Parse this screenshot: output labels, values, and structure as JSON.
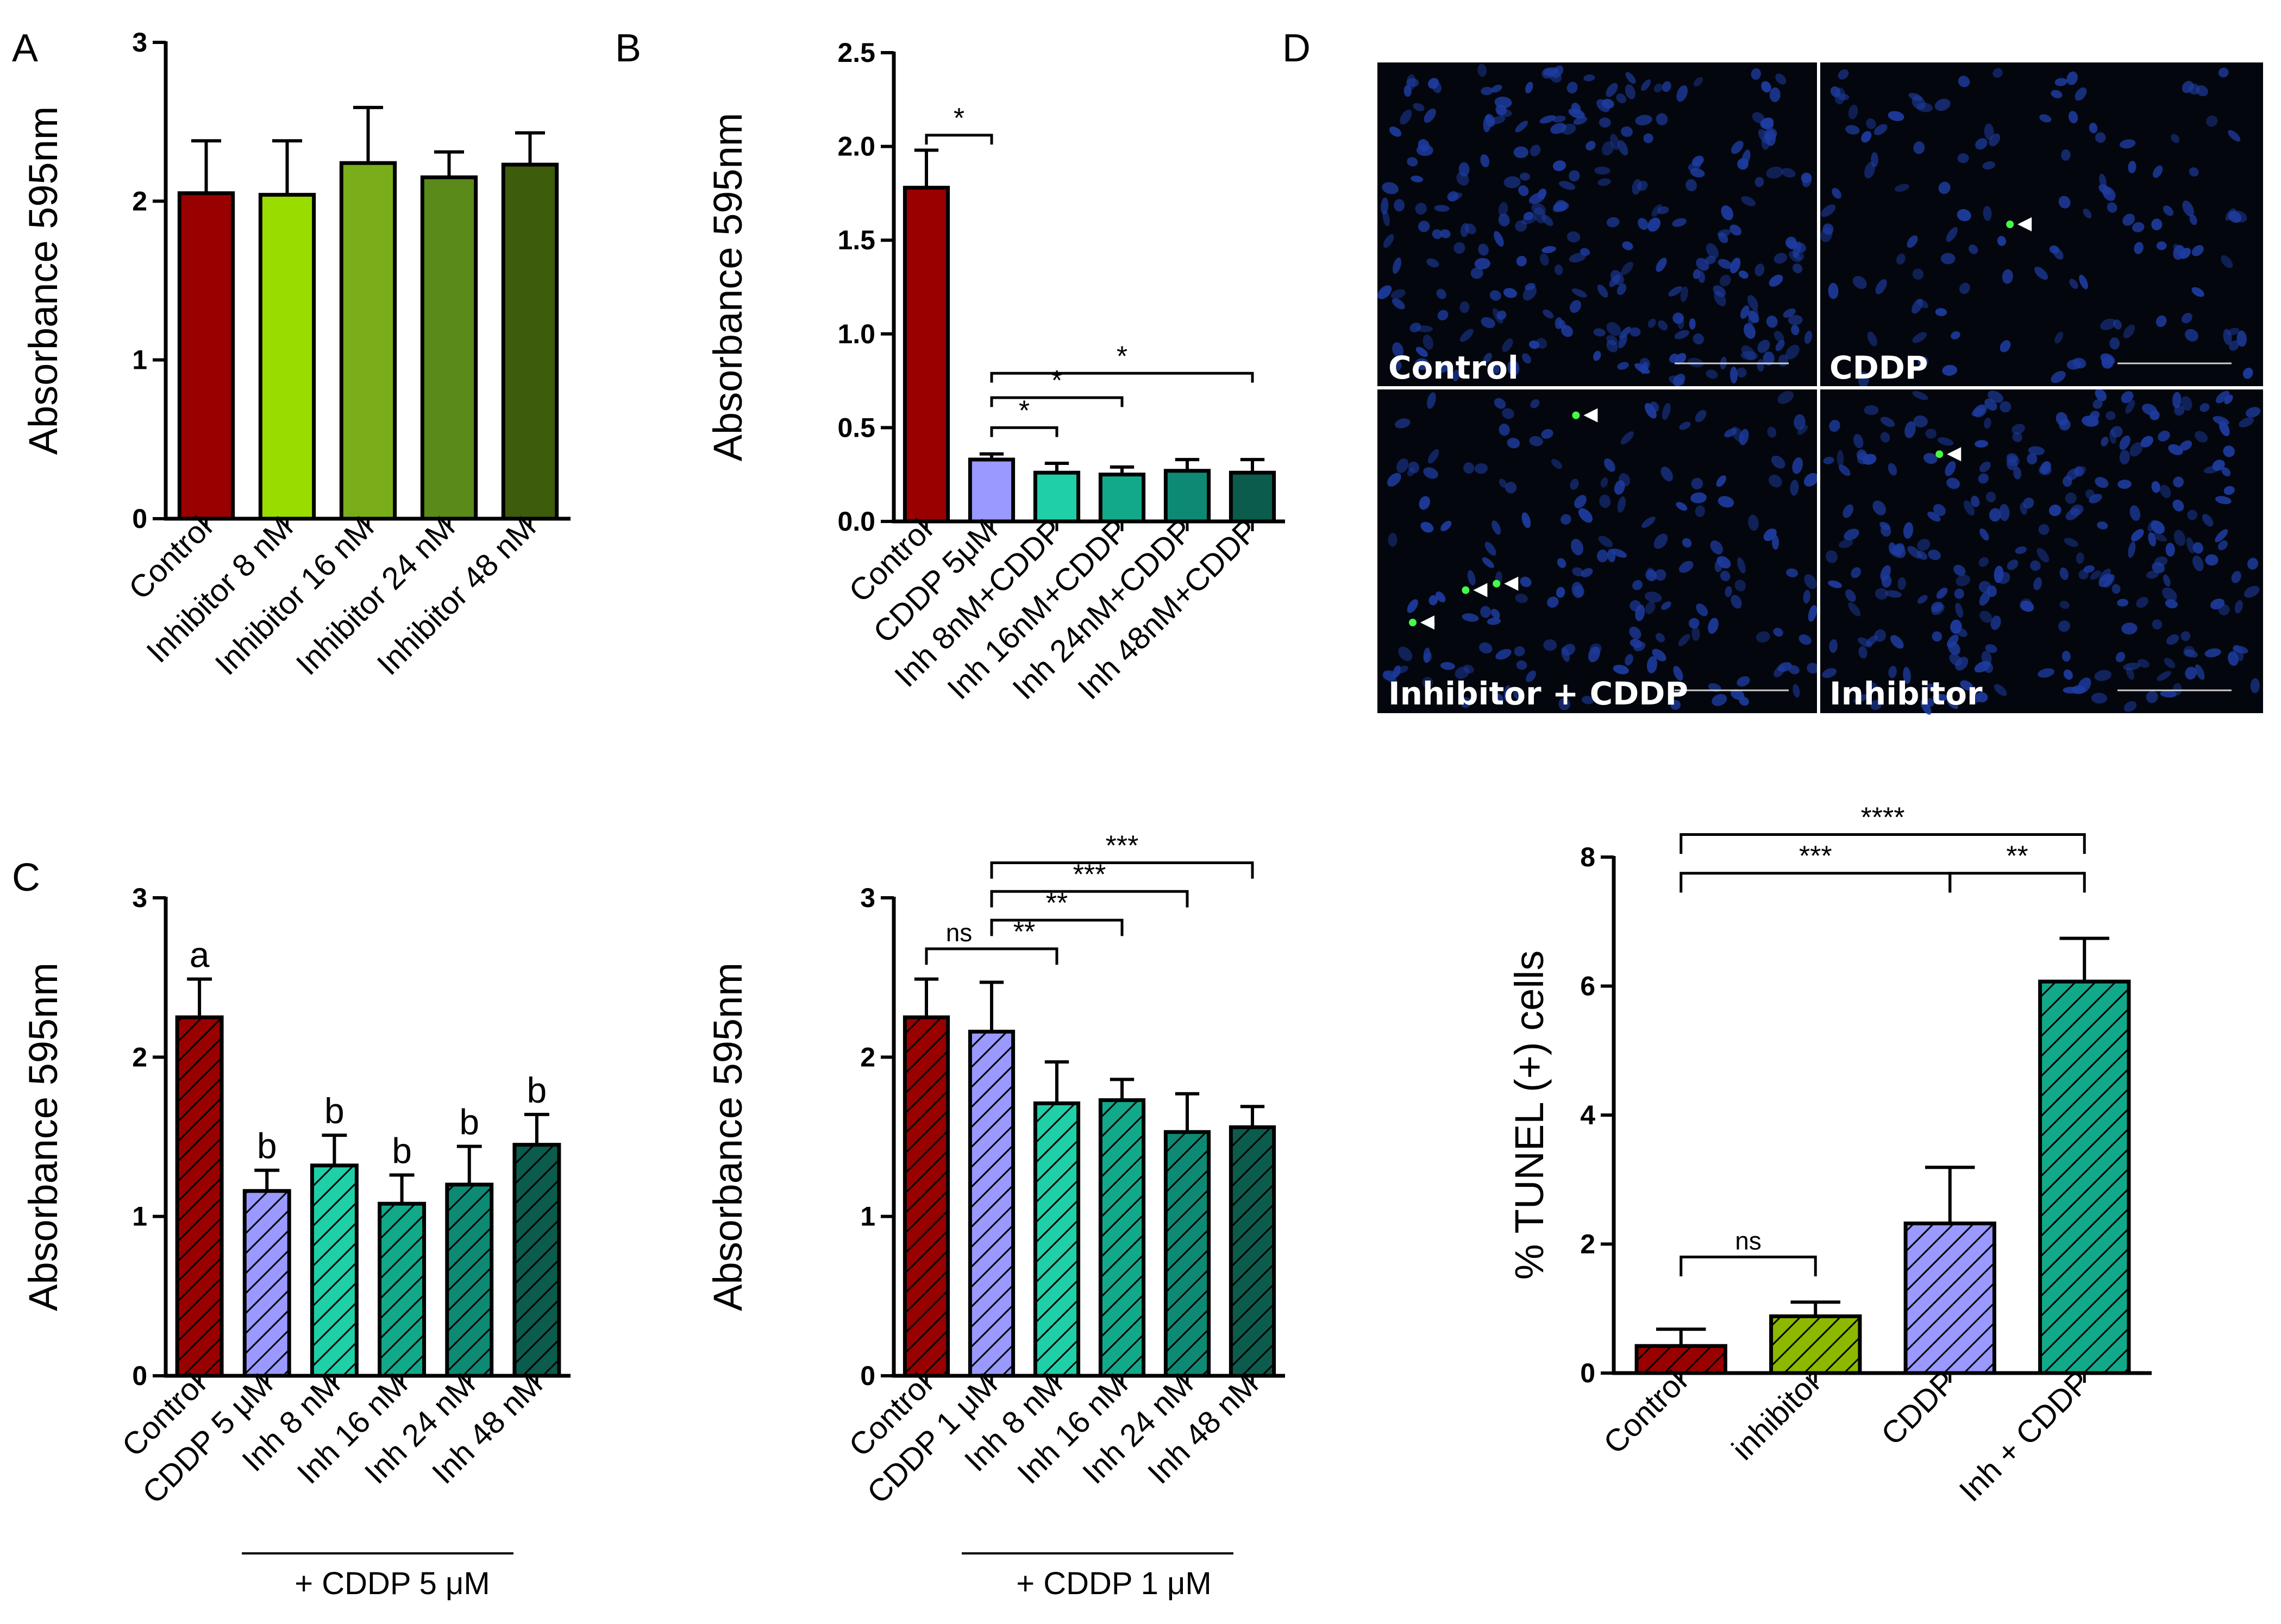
{
  "colors": {
    "control": "#990000",
    "cddp": "#9999ff",
    "inh_green_1": "#99dd00",
    "inh_green_2": "#7aad1a",
    "inh_green_3": "#5a8a1a",
    "inh_green_4": "#3d5c0c",
    "inh_teal_1": "#1fcfa8",
    "inh_teal_2": "#12a98a",
    "inh_teal_3": "#0e8a74",
    "inh_teal_4": "#0b5c4c",
    "inhibitor_d": "#8cb800",
    "inh_cddp_d": "#12a98a",
    "nuclei": "#1e3ca0",
    "tunel": "#44ff44"
  },
  "chart_data": [
    {
      "id": "A",
      "panel_label": "A",
      "type": "bar",
      "title": "",
      "xlabel": "",
      "ylabel": "Absorbance 595nm",
      "ylim": [
        0,
        3
      ],
      "yticks": [
        "0",
        "1",
        "2",
        "3"
      ],
      "hatched": false,
      "categories": [
        "Control",
        "Inhibitor 8 nM",
        "Inhibitor 16 nM",
        "Inhibitor 24 nM",
        "Inhibitor 48 nM"
      ],
      "values": [
        2.05,
        2.04,
        2.24,
        2.15,
        2.23
      ],
      "errors": [
        0.33,
        0.34,
        0.35,
        0.16,
        0.2
      ],
      "bar_colors": [
        "control",
        "inh_green_1",
        "inh_green_2",
        "inh_green_3",
        "inh_green_4"
      ],
      "brackets": [],
      "letters": []
    },
    {
      "id": "B",
      "panel_label": "B",
      "type": "bar",
      "title": "",
      "xlabel": "",
      "ylabel": "Absorbance 595nm",
      "ylim": [
        0,
        2.5
      ],
      "yticks": [
        "0.0",
        "0.5",
        "1.0",
        "1.5",
        "2.0",
        "2.5"
      ],
      "hatched": false,
      "categories": [
        "Control",
        "CDDP 5μM",
        "Inh 8nM+CDDP",
        "Inh 16nM+CDDP",
        "Inh 24nM+CDDP",
        "Inh 48nM+CDDP"
      ],
      "values": [
        1.78,
        0.33,
        0.26,
        0.25,
        0.27,
        0.26
      ],
      "errors": [
        0.2,
        0.03,
        0.05,
        0.04,
        0.06,
        0.07
      ],
      "bar_colors": [
        "control",
        "cddp",
        "inh_teal_1",
        "inh_teal_2",
        "inh_teal_3",
        "inh_teal_4"
      ],
      "brackets": [
        {
          "from": 0,
          "to": 1,
          "y": 2.06,
          "label": "*",
          "drop_left": 0.05,
          "drop_right": 0.05
        },
        {
          "from": 1,
          "to": 2,
          "y": 0.5,
          "label": "*",
          "drop_left": 0.05,
          "drop_right": 0.05
        },
        {
          "from": 1,
          "to": 3,
          "y": 0.66,
          "label": "*",
          "drop_left": 0.05,
          "drop_right": 0.05
        },
        {
          "from": 1,
          "to": 5,
          "y": 0.79,
          "label": "*",
          "drop_left": 0.05,
          "drop_right": 0.05
        }
      ],
      "letters": []
    },
    {
      "id": "C1",
      "panel_label": "C",
      "type": "bar",
      "title": "",
      "xlabel": "",
      "ylabel": "Absorbance 595nm",
      "ylim": [
        0,
        3
      ],
      "yticks": [
        "0",
        "1",
        "2",
        "3"
      ],
      "hatched": true,
      "categories": [
        "Control",
        "CDDP 5 μM",
        "Inh 8 nM",
        "Inh 16 nM",
        "Inh 24 nM",
        "Inh 48 nM"
      ],
      "values": [
        2.25,
        1.16,
        1.32,
        1.08,
        1.2,
        1.45
      ],
      "errors": [
        0.24,
        0.13,
        0.19,
        0.18,
        0.24,
        0.19
      ],
      "bar_colors": [
        "control",
        "cddp",
        "inh_teal_1",
        "inh_teal_2",
        "inh_teal_3",
        "inh_teal_4"
      ],
      "brackets": [],
      "letters": [
        "a",
        "b",
        "b",
        "b",
        "b",
        "b"
      ],
      "group_label": "+ CDDP 5 μM"
    },
    {
      "id": "C2",
      "panel_label": "",
      "type": "bar",
      "title": "",
      "xlabel": "",
      "ylabel": "Absorbance 595nm",
      "ylim": [
        0,
        3
      ],
      "yticks": [
        "0",
        "1",
        "2",
        "3"
      ],
      "hatched": true,
      "categories": [
        "Control",
        "CDDP 1 μM",
        "Inh 8 nM",
        "Inh 16 nM",
        "Inh 24 nM",
        "Inh 48 nM"
      ],
      "values": [
        2.25,
        2.16,
        1.71,
        1.73,
        1.53,
        1.56
      ],
      "errors": [
        0.24,
        0.31,
        0.26,
        0.13,
        0.24,
        0.13
      ],
      "bar_colors": [
        "control",
        "cddp",
        "inh_teal_1",
        "inh_teal_2",
        "inh_teal_3",
        "inh_teal_4"
      ],
      "brackets": [
        {
          "from": 0,
          "to": 1,
          "y": 2.68,
          "label": "ns",
          "drop_left": 0.1,
          "drop_right": 0.0
        },
        {
          "from": 1,
          "to": 2,
          "y": 2.68,
          "label": "**",
          "drop_left": 0.0,
          "drop_right": 0.1
        },
        {
          "from": 1,
          "to": 3,
          "y": 2.86,
          "label": "**",
          "drop_left": 0.1,
          "drop_right": 0.1
        },
        {
          "from": 1,
          "to": 4,
          "y": 3.04,
          "label": "***",
          "drop_left": 0.1,
          "drop_right": 0.1
        },
        {
          "from": 1,
          "to": 5,
          "y": 3.22,
          "label": "***",
          "drop_left": 0.1,
          "drop_right": 0.1
        }
      ],
      "letters": [],
      "group_label": "+ CDDP 1 μM"
    },
    {
      "id": "D2",
      "panel_label": "",
      "type": "bar",
      "title": "",
      "xlabel": "",
      "ylabel": "% TUNEL (+) cells",
      "ylim": [
        0,
        8
      ],
      "yticks": [
        "0",
        "2",
        "4",
        "6",
        "8"
      ],
      "hatched": true,
      "categories": [
        "Control",
        "inhibitor",
        "CDDP",
        "Inh + CDDP"
      ],
      "values": [
        0.42,
        0.88,
        2.32,
        6.07
      ],
      "errors": [
        0.26,
        0.22,
        0.87,
        0.67
      ],
      "bar_colors": [
        "control",
        "inhibitor_d",
        "cddp",
        "inh_cddp_d"
      ],
      "brackets": [
        {
          "from": 0,
          "to": 1,
          "y": 1.8,
          "label": "ns",
          "drop_left": 0.3,
          "drop_right": 0.3
        },
        {
          "from": 0,
          "to": 2,
          "y": 7.75,
          "label": "***",
          "drop_left": 0.3,
          "drop_right": 0.3
        },
        {
          "from": 2,
          "to": 3,
          "y": 7.75,
          "label": "**",
          "drop_left": 0.3,
          "drop_right": 0.3
        },
        {
          "from": 0,
          "to": 3,
          "y": 8.35,
          "label": "****",
          "drop_left": 0.3,
          "drop_right": 0.3
        }
      ],
      "letters": []
    }
  ],
  "micrographs": {
    "panel_label": "D",
    "panels": [
      {
        "label": "Control",
        "positives": 0
      },
      {
        "label": "CDDP",
        "positives": 1
      },
      {
        "label": "Inhibitor + CDDP",
        "positives": 4
      },
      {
        "label": "Inhibitor",
        "positives": 1
      }
    ]
  }
}
